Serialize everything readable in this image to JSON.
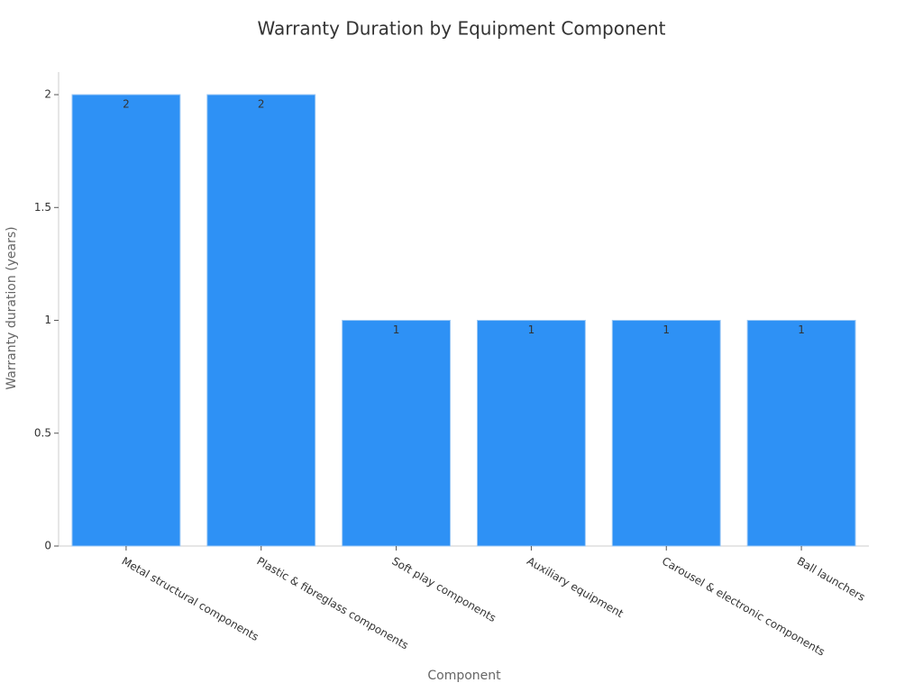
{
  "chart_data": {
    "type": "bar",
    "title": "Warranty Duration by Equipment Component",
    "x_label": "Component",
    "y_label": "Warranty duration (years)",
    "categories": [
      "Metal structural components",
      "Plastic & fibreglass components",
      "Soft play components",
      "Auxiliary equipment",
      "Carousel & electronic components",
      "Ball launchers"
    ],
    "values": [
      2,
      2,
      1,
      1,
      1,
      1
    ],
    "color": "#2e91f5",
    "ylim": [
      0,
      2.1
    ],
    "yticks": [
      0,
      0.5,
      1,
      1.5,
      2
    ],
    "grid": false
  }
}
